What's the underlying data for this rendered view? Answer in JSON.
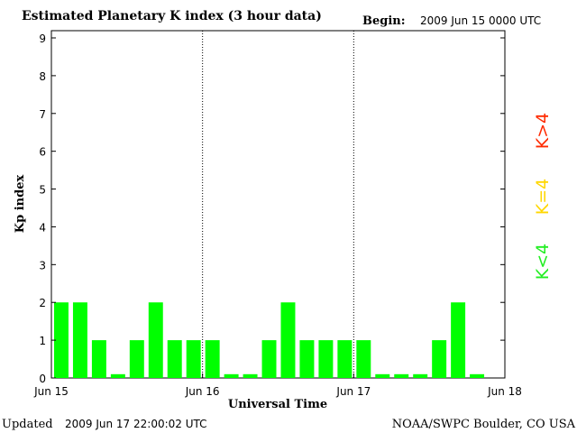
{
  "header": {
    "title": "Estimated Planetary K index (3 hour data)",
    "begin_label": "Begin:",
    "begin_value": "2009 Jun 15 0000 UTC"
  },
  "footer": {
    "updated_label": "Updated",
    "updated_value": "2009 Jun 17 22:00:02 UTC",
    "source": "NOAA/SWPC Boulder, CO USA"
  },
  "legend": {
    "high": {
      "label": "K>4",
      "color": "#ff2a00"
    },
    "equal": {
      "label": "K=4",
      "color": "#ffd700"
    },
    "low": {
      "label": "K<4",
      "color": "#22ee22"
    }
  },
  "chart_data": {
    "type": "bar",
    "xlabel": "Universal Time",
    "ylabel": "Kp index",
    "ylim": [
      0,
      9
    ],
    "y_ticks": [
      "0",
      "1",
      "2",
      "3",
      "4",
      "5",
      "6",
      "7",
      "8",
      "9"
    ],
    "x_ticks": [
      "Jun 15",
      "Jun 16",
      "Jun 17",
      "Jun 18"
    ],
    "day_dividers": [
      "Jun 16",
      "Jun 17"
    ],
    "interval_hours": 3,
    "values": [
      2,
      2,
      1,
      0.1,
      1,
      2,
      1,
      1,
      1,
      0.1,
      0.1,
      1,
      2,
      1,
      1,
      1,
      1,
      0.1,
      0.1,
      0.1,
      1,
      2,
      0.1
    ],
    "bar_color": "#00ff00",
    "grid": false
  }
}
